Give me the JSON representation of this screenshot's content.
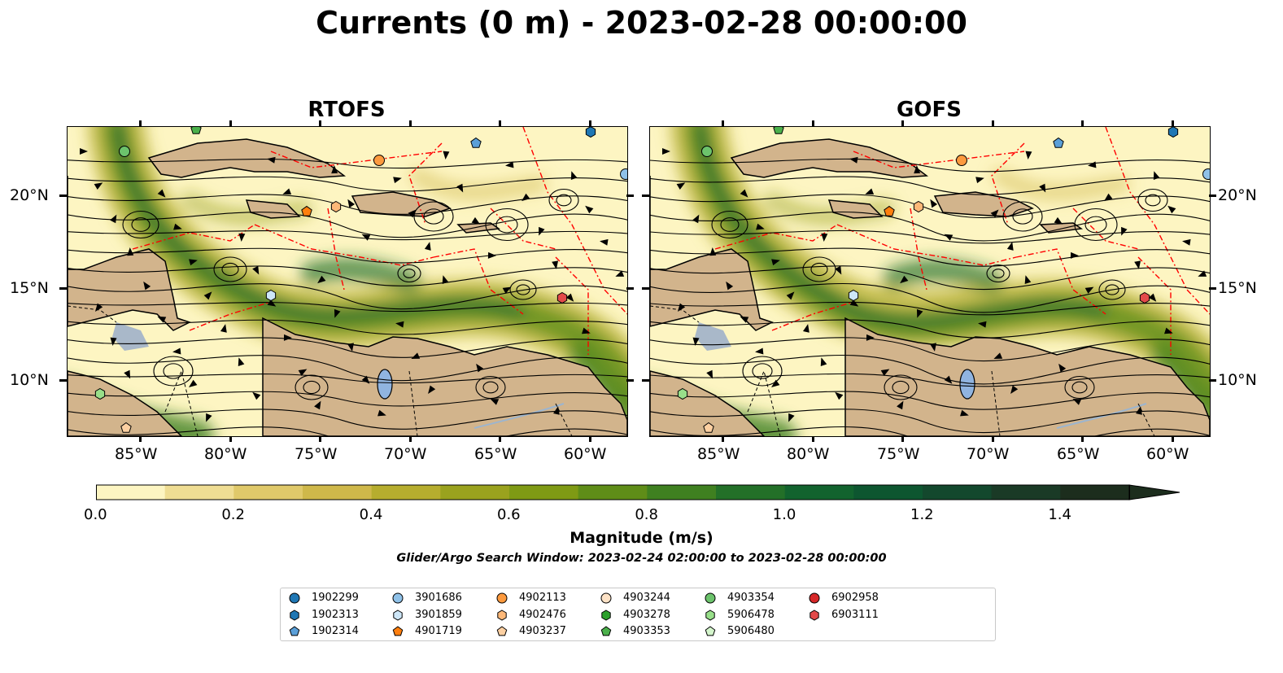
{
  "title": "Currents (0 m) - 2023-02-28 00:00:00",
  "panels": [
    {
      "title": "RTOFS"
    },
    {
      "title": "GOFS"
    }
  ],
  "x_ticks": [
    "85°W",
    "80°W",
    "75°W",
    "70°W",
    "65°W",
    "60°W"
  ],
  "y_ticks": [
    "20°N",
    "15°N",
    "10°N"
  ],
  "colorbar": {
    "label": "Magnitude (m/s)",
    "ticks": [
      "0.0",
      "0.2",
      "0.4",
      "0.6",
      "0.8",
      "1.0",
      "1.2",
      "1.4"
    ],
    "range": [
      0,
      1.5
    ],
    "extend": "max",
    "colors": [
      "#fdf5c2",
      "#efdd93",
      "#e0c96a",
      "#cfb84a",
      "#b6ad2e",
      "#9aa21e",
      "#7f9a14",
      "#5f8d18",
      "#3f8020",
      "#237028",
      "#12632e",
      "#0d5630",
      "#13482d",
      "#1a3a26",
      "#1c2d1d"
    ]
  },
  "subtitle": "Glider/Argo Search Window: 2023-02-24 02:00:00 to 2023-02-28 00:00:00",
  "legend": [
    {
      "id": "1902299",
      "marker": "circle",
      "color": "#1f77b4"
    },
    {
      "id": "1902313",
      "marker": "hexagon",
      "color": "#1f77b4"
    },
    {
      "id": "1902314",
      "marker": "pentagon",
      "color": "#5a9fd8"
    },
    {
      "id": "3901686",
      "marker": "circle",
      "color": "#8fc1e8"
    },
    {
      "id": "3901859",
      "marker": "hexagon",
      "color": "#cde6f7"
    },
    {
      "id": "4901719",
      "marker": "pentagon",
      "color": "#ff7f0e"
    },
    {
      "id": "4902113",
      "marker": "circle",
      "color": "#fd9a3e"
    },
    {
      "id": "4902476",
      "marker": "hexagon",
      "color": "#fdb878"
    },
    {
      "id": "4903237",
      "marker": "pentagon",
      "color": "#fdd0a2"
    },
    {
      "id": "4903244",
      "marker": "circle",
      "color": "#fde2c6"
    },
    {
      "id": "4903278",
      "marker": "hexagon",
      "color": "#2ca02c"
    },
    {
      "id": "4903353",
      "marker": "pentagon",
      "color": "#4bb04b"
    },
    {
      "id": "4903354",
      "marker": "circle",
      "color": "#6cc36c"
    },
    {
      "id": "5906478",
      "marker": "hexagon",
      "color": "#98df8a"
    },
    {
      "id": "5906480",
      "marker": "pentagon",
      "color": "#d4f5cc"
    },
    {
      "id": "6902958",
      "marker": "circle",
      "color": "#d62728"
    },
    {
      "id": "6903111",
      "marker": "hexagon",
      "color": "#e34a4a"
    }
  ],
  "colors": {
    "land": "#d2b48c",
    "lake": "#90b4e0",
    "eez": "#ff0000",
    "ocean_light": "#fdf5c2",
    "current_core": "#1d6b2e"
  }
}
